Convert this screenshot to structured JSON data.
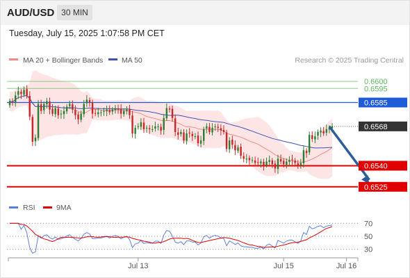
{
  "header": {
    "symbol": "AUD/USD",
    "timeframe": "30 MIN"
  },
  "datetime": "Tuesday, July 15, 2025 1:07:58 PM CET",
  "legend": {
    "ma20_label": "MA 20 + Bollinger Bands",
    "ma50_label": "MA 50",
    "rsi_label": "RSI",
    "rsi_ma_label": "9MA"
  },
  "copyright": "Research © 2025 Trading Central",
  "colors": {
    "bull": "#2e7d32",
    "bear": "#c62828",
    "ma20": "#f28b82",
    "bollinger_fill": "#fde0e0",
    "ma50": "#3f51b5",
    "resistance_blue": "#1f5bd6",
    "support_red": "#e00000",
    "target_green": "#5cb85c",
    "arrow": "#2e5c99",
    "rsi_line": "#5b7fe0",
    "rsi_ma": "#e00000"
  },
  "icons": {
    "trend_arrow": "arrow-down-icon"
  },
  "chart_data": {
    "type": "candlestick",
    "y_range": [
      0.65145,
      0.66085
    ],
    "levels": [
      {
        "value": 0.66,
        "label": "0.6600",
        "kind": "target",
        "color": "#5cb85c"
      },
      {
        "value": 0.6595,
        "label": "0.6595",
        "kind": "target",
        "color": "#5cb85c"
      },
      {
        "value": 0.6585,
        "label": "0.6585",
        "kind": "resistance",
        "color": "#1f5bd6"
      },
      {
        "value": 0.6568,
        "label": "0.6568",
        "kind": "last",
        "color": "#333333"
      },
      {
        "value": 0.654,
        "label": "0.6540",
        "kind": "support",
        "color": "#e00000"
      },
      {
        "value": 0.6525,
        "label": "0.6525",
        "kind": "support",
        "color": "#e00000"
      }
    ],
    "x_labels": [
      {
        "label": "Jul 13",
        "index": 45
      },
      {
        "label": "Jul 15",
        "index": 96
      },
      {
        "label": "Jul 16",
        "index": 118
      }
    ],
    "candles": {
      "closes": [
        0.6586,
        0.6585,
        0.659,
        0.6593,
        0.6591,
        0.6594,
        0.659,
        0.6575,
        0.6557,
        0.656,
        0.6584,
        0.6579,
        0.6584,
        0.6586,
        0.658,
        0.6577,
        0.6581,
        0.6576,
        0.6577,
        0.6579,
        0.6582,
        0.6584,
        0.658,
        0.6576,
        0.6573,
        0.6577,
        0.6584,
        0.6587,
        0.6585,
        0.6577,
        0.6577,
        0.6578,
        0.6578,
        0.6579,
        0.658,
        0.6578,
        0.658,
        0.6581,
        0.658,
        0.6577,
        0.6579,
        0.658,
        0.6576,
        0.6563,
        0.6567,
        0.6568,
        0.6571,
        0.6566,
        0.6567,
        0.6566,
        0.6566,
        0.6568,
        0.6568,
        0.6565,
        0.6574,
        0.6581,
        0.658,
        0.6574,
        0.6564,
        0.6562,
        0.6564,
        0.6558,
        0.6563,
        0.6563,
        0.6561,
        0.6561,
        0.6556,
        0.6558,
        0.6566,
        0.6568,
        0.6564,
        0.6567,
        0.6568,
        0.6567,
        0.6565,
        0.6564,
        0.6552,
        0.6558,
        0.6555,
        0.6551,
        0.6553,
        0.6547,
        0.6545,
        0.6545,
        0.6544,
        0.6544,
        0.6542,
        0.6542,
        0.6543,
        0.654,
        0.6543,
        0.6544,
        0.6541,
        0.6538,
        0.6545,
        0.6543,
        0.6541,
        0.6543,
        0.6544,
        0.6544,
        0.6542,
        0.654,
        0.6542,
        0.6551,
        0.6549,
        0.6562,
        0.6559,
        0.6561,
        0.6564,
        0.6565,
        0.6563,
        0.6566,
        0.6567,
        0.6568
      ],
      "bodies_count": 114
    },
    "rsi": {
      "y_range": [
        20,
        80
      ],
      "ticks": [
        70,
        50,
        30
      ],
      "dotted_levels": [
        70,
        50,
        30
      ]
    },
    "arrow": {
      "from_index": 112,
      "from_value": 0.6568,
      "to_index": 126,
      "to_value": 0.6525
    }
  }
}
